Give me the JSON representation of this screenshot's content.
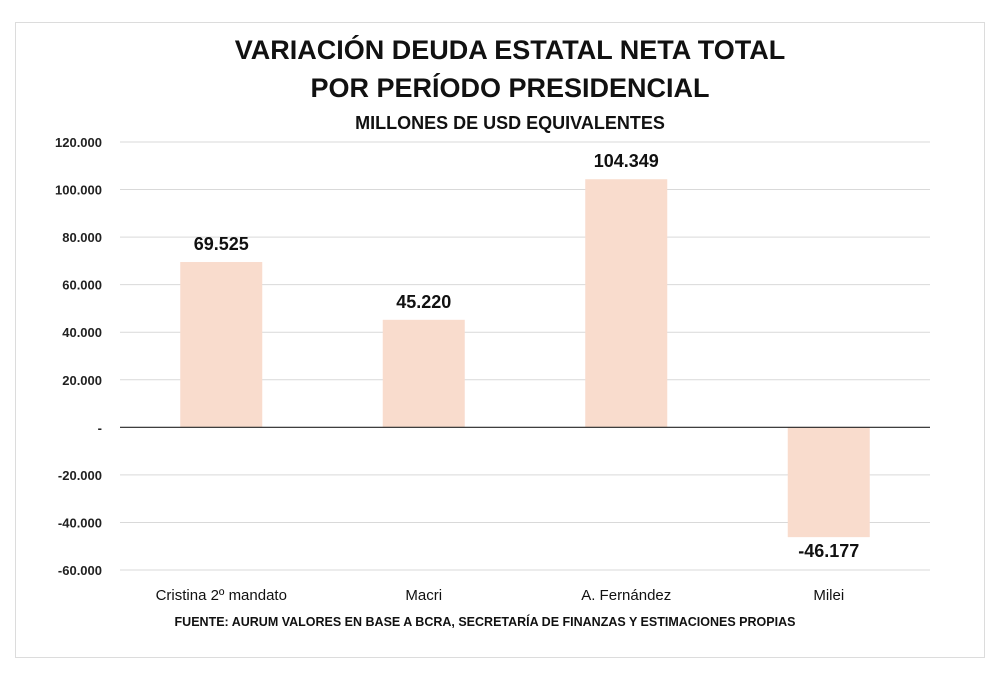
{
  "chart_data": {
    "type": "bar",
    "title": [
      "VARIACIÓN DEUDA ESTATAL NETA TOTAL",
      "POR PERÍODO PRESIDENCIAL"
    ],
    "subtitle": "MILLONES DE USD EQUIVALENTES",
    "categories": [
      "Cristina 2º mandato",
      "Macri",
      "A. Fernández",
      "Milei"
    ],
    "values": [
      69525,
      45220,
      104349,
      -46177
    ],
    "data_labels": [
      "69.525",
      "45.220",
      "104.349",
      "-46.177"
    ],
    "ylim": [
      -60000,
      120000
    ],
    "yticks": [
      120000,
      100000,
      80000,
      60000,
      40000,
      20000,
      0,
      -20000,
      -40000,
      -60000
    ],
    "ytick_labels": [
      "120.000",
      "100.000",
      "80.000",
      "60.000",
      "40.000",
      "20.000",
      "-",
      "-20.000",
      "-40.000",
      "-60.000"
    ],
    "grid": true,
    "xlabel": "",
    "ylabel": "",
    "bar_color": "#f9dccd",
    "source": "FUENTE: AURUM VALORES EN BASE A BCRA, SECRETARÍA DE FINANZAS Y ESTIMACIONES PROPIAS"
  }
}
